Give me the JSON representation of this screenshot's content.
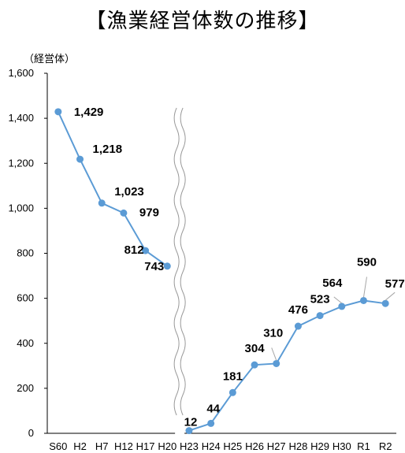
{
  "chart_data": {
    "type": "line",
    "title": "【漁業経営体数の推移】",
    "unit_label": "（経営体）",
    "xlabel": "",
    "ylabel": "",
    "ylim": [
      0,
      1600
    ],
    "yticks": [
      0,
      200,
      400,
      600,
      800,
      1000,
      1200,
      1400,
      1600
    ],
    "ytick_labels": [
      "0",
      "200",
      "400",
      "600",
      "800",
      "1,000",
      "1,200",
      "1,400",
      "1,600"
    ],
    "categories": [
      "S60",
      "H2",
      "H7",
      "H12",
      "H17",
      "H20",
      "H23",
      "H24",
      "H25",
      "H26",
      "H27",
      "H28",
      "H29",
      "H30",
      "R1",
      "R2"
    ],
    "values": [
      1429,
      1218,
      1023,
      979,
      812,
      743,
      12,
      44,
      181,
      304,
      310,
      476,
      523,
      564,
      590,
      577
    ],
    "data_labels": [
      "1,429",
      "1,218",
      "1,023",
      "979",
      "812",
      "743",
      "12",
      "44",
      "181",
      "304",
      "310",
      "476",
      "523",
      "564",
      "590",
      "577"
    ],
    "axis_break_between": [
      "H20",
      "H23"
    ],
    "grid": false,
    "colors": {
      "line": "#5B9BD5",
      "marker": "#5B9BD5",
      "leader": "#A6A6A6",
      "axis": "#000000"
    }
  }
}
